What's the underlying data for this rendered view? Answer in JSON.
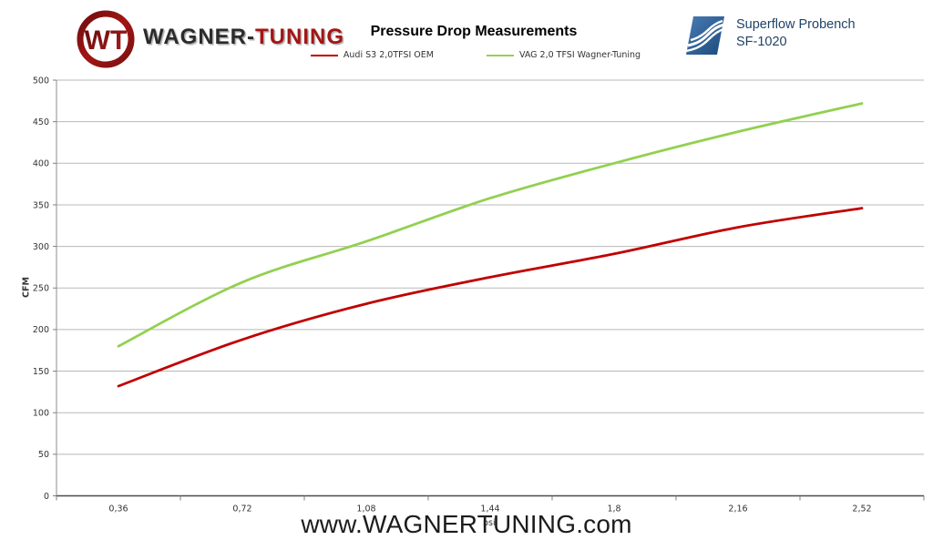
{
  "header": {
    "wagner_logo": {
      "emblem_text": "WT",
      "brand_part1": "WAGNER-",
      "brand_part2": "TUNING"
    },
    "superflow": {
      "line1": "Superflow Probench",
      "line2": "SF-1020"
    }
  },
  "chart_data": {
    "type": "line",
    "title": "Pressure Drop Measurements",
    "xlabel": "psi",
    "ylabel": "CFM",
    "categories": [
      "0,36",
      "0,72",
      "1,08",
      "1,44",
      "1,8",
      "2,16",
      "2,52"
    ],
    "series": [
      {
        "name": "Audi S3 2,0TFSI OEM",
        "color": "#C00000",
        "values": [
          132,
          188,
          231,
          263,
          291,
          323,
          346
        ]
      },
      {
        "name": "VAG 2,0 TFSI  Wagner-Tuning",
        "color": "#92D050",
        "values": [
          180,
          257,
          306,
          358,
          400,
          438,
          472
        ]
      }
    ],
    "ylim": [
      0,
      500
    ],
    "y_ticks": [
      0,
      50,
      100,
      150,
      200,
      250,
      300,
      350,
      400,
      450,
      500
    ],
    "grid": true,
    "legend_position": "top-center",
    "colors": {
      "grid": "#b9b9b9",
      "axis_bottom": "#4d4d4d",
      "axis_left": "#8c8c8c",
      "tick": "#808080",
      "tick_label": "#333333"
    }
  },
  "footer": {
    "watermark": "www.WAGNERTUNING.com"
  }
}
